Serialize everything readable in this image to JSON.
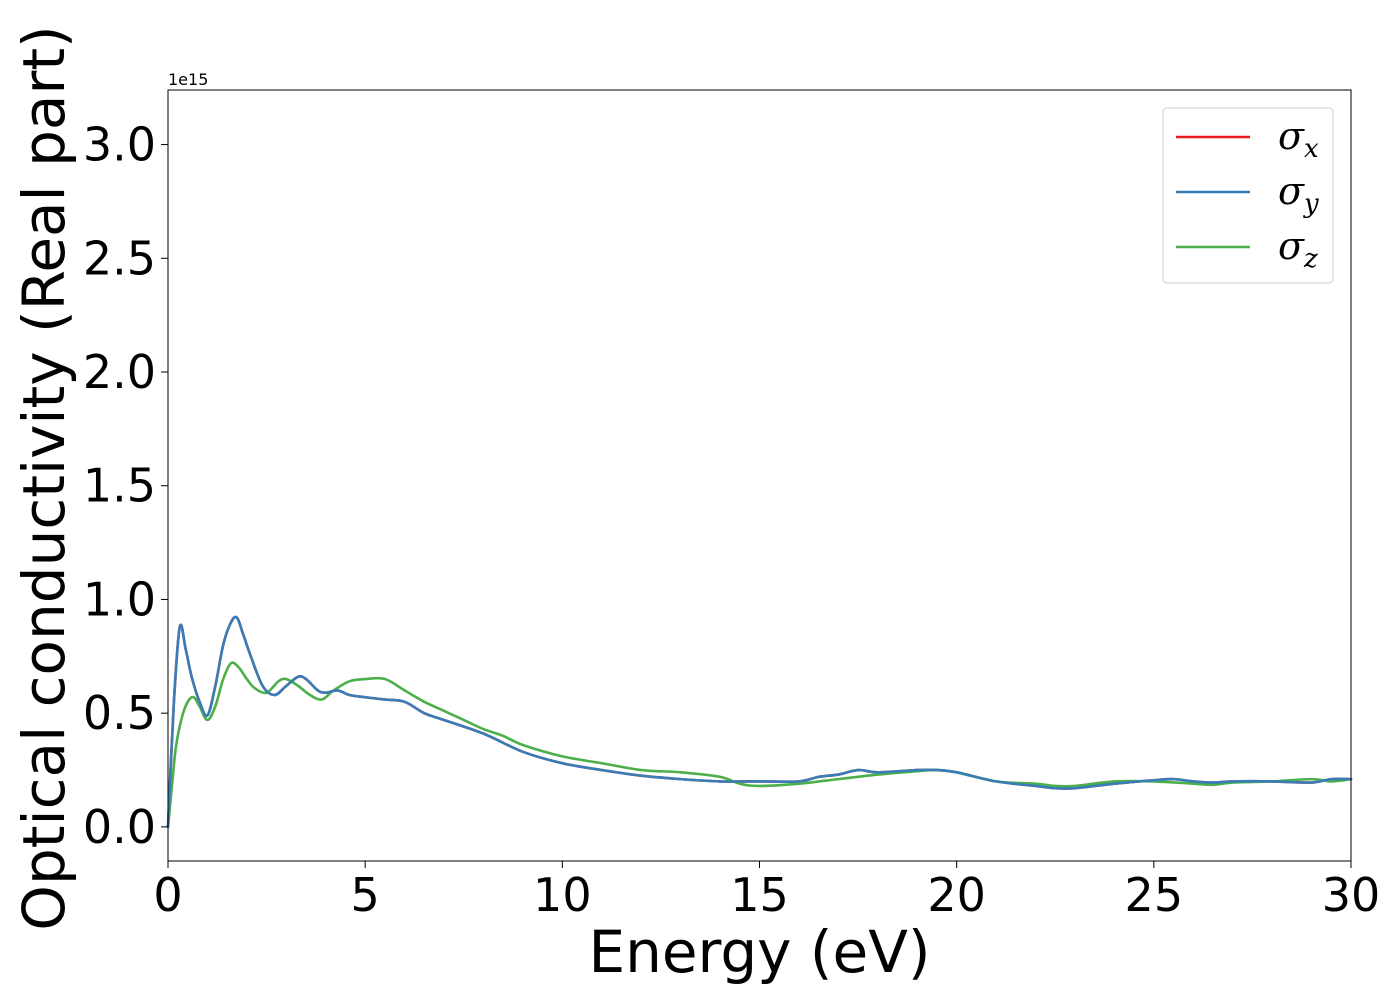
{
  "chart_data": {
    "type": "line",
    "xlabel": "Energy (eV)",
    "ylabel": "Optical conductivity (Real part)",
    "y_offset_label": "1e15",
    "xlim": [
      0,
      30
    ],
    "ylim": [
      -0.15,
      3.24
    ],
    "xticks": [
      0,
      5,
      10,
      15,
      20,
      25,
      30
    ],
    "xtick_labels": [
      "0",
      "5",
      "10",
      "15",
      "20",
      "25",
      "30"
    ],
    "yticks": [
      0.0,
      0.5,
      1.0,
      1.5,
      2.0,
      2.5,
      3.0
    ],
    "ytick_labels": [
      "0.0",
      "0.5",
      "1.0",
      "1.5",
      "2.0",
      "2.5",
      "3.0"
    ],
    "grid": false,
    "legend_position": "top-right",
    "series": [
      {
        "name": "σx",
        "symbol": "σ",
        "subscript": "x",
        "color": "#e41a1c",
        "x": [
          0.0,
          0.15,
          0.3,
          0.45,
          0.6,
          0.8,
          1.0,
          1.2,
          1.4,
          1.6,
          1.75,
          1.9,
          2.1,
          2.4,
          2.7,
          3.0,
          3.3,
          3.5,
          3.8,
          4.0,
          4.3,
          4.6,
          5.0,
          5.5,
          6.0,
          6.5,
          7.0,
          8.0,
          9.0,
          10.0,
          11.0,
          12.0,
          13.0,
          14.0,
          15.0,
          16.0,
          16.5,
          17.0,
          17.5,
          18.0,
          19.0,
          19.5,
          20.0,
          21.0,
          22.0,
          22.5,
          23.0,
          24.0,
          25.0,
          25.5,
          26.0,
          26.5,
          27.0,
          28.0,
          29.0,
          29.5,
          30.0
        ],
        "y": [
          0.0,
          0.55,
          0.88,
          0.78,
          0.66,
          0.55,
          0.49,
          0.62,
          0.8,
          0.9,
          0.92,
          0.85,
          0.75,
          0.62,
          0.58,
          0.62,
          0.66,
          0.65,
          0.6,
          0.59,
          0.6,
          0.58,
          0.57,
          0.56,
          0.55,
          0.5,
          0.47,
          0.41,
          0.33,
          0.28,
          0.25,
          0.225,
          0.21,
          0.2,
          0.2,
          0.2,
          0.22,
          0.23,
          0.25,
          0.24,
          0.25,
          0.25,
          0.24,
          0.2,
          0.18,
          0.17,
          0.17,
          0.19,
          0.205,
          0.21,
          0.2,
          0.195,
          0.2,
          0.2,
          0.195,
          0.21,
          0.21
        ]
      },
      {
        "name": "σy",
        "symbol": "σ",
        "subscript": "y",
        "color": "#377eb8",
        "x": [
          0.0,
          0.15,
          0.3,
          0.45,
          0.6,
          0.8,
          1.0,
          1.2,
          1.4,
          1.6,
          1.75,
          1.9,
          2.1,
          2.4,
          2.7,
          3.0,
          3.3,
          3.5,
          3.8,
          4.0,
          4.3,
          4.6,
          5.0,
          5.5,
          6.0,
          6.5,
          7.0,
          8.0,
          9.0,
          10.0,
          11.0,
          12.0,
          13.0,
          14.0,
          15.0,
          16.0,
          16.5,
          17.0,
          17.5,
          18.0,
          19.0,
          19.5,
          20.0,
          21.0,
          22.0,
          22.5,
          23.0,
          24.0,
          25.0,
          25.5,
          26.0,
          26.5,
          27.0,
          28.0,
          29.0,
          29.5,
          30.0
        ],
        "y": [
          0.0,
          0.55,
          0.88,
          0.78,
          0.66,
          0.55,
          0.49,
          0.62,
          0.8,
          0.9,
          0.92,
          0.85,
          0.75,
          0.62,
          0.58,
          0.62,
          0.66,
          0.65,
          0.6,
          0.59,
          0.6,
          0.58,
          0.57,
          0.56,
          0.55,
          0.5,
          0.47,
          0.41,
          0.33,
          0.28,
          0.25,
          0.225,
          0.21,
          0.2,
          0.2,
          0.2,
          0.22,
          0.23,
          0.25,
          0.24,
          0.25,
          0.25,
          0.24,
          0.2,
          0.18,
          0.17,
          0.17,
          0.19,
          0.205,
          0.21,
          0.2,
          0.195,
          0.2,
          0.2,
          0.195,
          0.21,
          0.21
        ]
      },
      {
        "name": "σz",
        "symbol": "σ",
        "subscript": "z",
        "color": "#4daf4a",
        "x": [
          0.0,
          0.1,
          0.2,
          0.35,
          0.5,
          0.65,
          0.8,
          1.0,
          1.2,
          1.4,
          1.6,
          1.8,
          2.0,
          2.2,
          2.5,
          2.8,
          3.0,
          3.3,
          3.6,
          3.9,
          4.2,
          4.6,
          5.0,
          5.5,
          6.0,
          6.5,
          7.0,
          7.5,
          8.0,
          8.5,
          9.0,
          10.0,
          11.0,
          12.0,
          13.0,
          14.0,
          14.5,
          15.0,
          16.0,
          17.0,
          18.0,
          19.0,
          19.5,
          20.0,
          21.0,
          22.0,
          22.5,
          23.0,
          24.0,
          25.0,
          26.0,
          26.5,
          27.0,
          28.0,
          29.0,
          29.5,
          30.0
        ],
        "y": [
          0.0,
          0.18,
          0.35,
          0.48,
          0.55,
          0.57,
          0.53,
          0.47,
          0.53,
          0.65,
          0.72,
          0.7,
          0.65,
          0.61,
          0.59,
          0.64,
          0.65,
          0.62,
          0.58,
          0.56,
          0.6,
          0.64,
          0.65,
          0.65,
          0.6,
          0.55,
          0.51,
          0.47,
          0.43,
          0.4,
          0.36,
          0.31,
          0.28,
          0.25,
          0.24,
          0.22,
          0.19,
          0.18,
          0.19,
          0.21,
          0.23,
          0.245,
          0.25,
          0.24,
          0.2,
          0.19,
          0.18,
          0.18,
          0.2,
          0.2,
          0.19,
          0.185,
          0.195,
          0.2,
          0.21,
          0.2,
          0.21
        ]
      }
    ]
  }
}
